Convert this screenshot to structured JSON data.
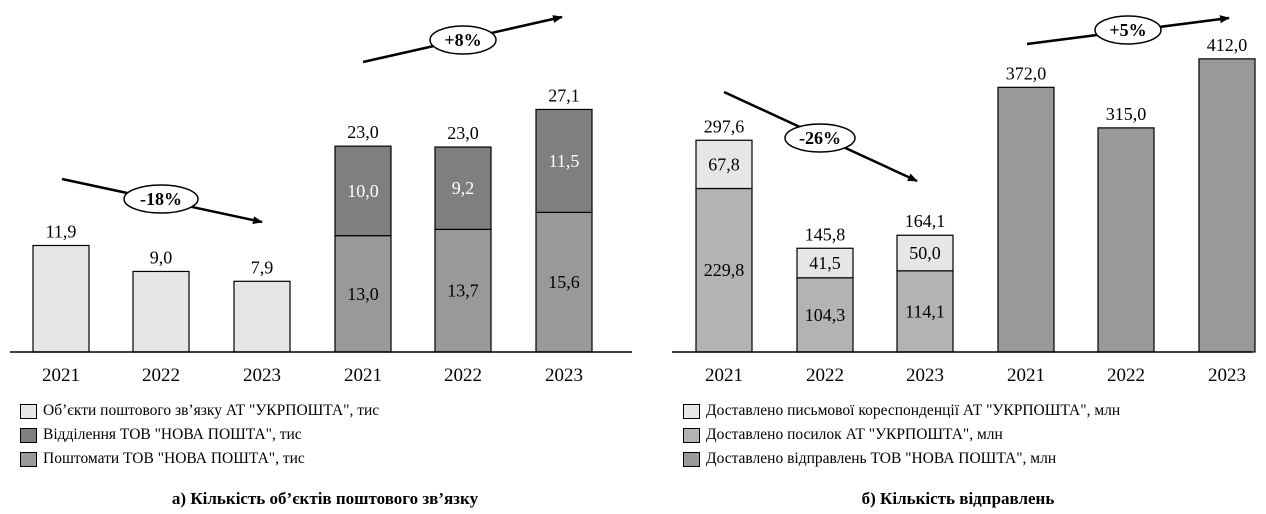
{
  "colors": {
    "light": "#e6e6e6",
    "dark": "#7f7f7f",
    "mid": "#b3b3b3",
    "medium": "#999999"
  },
  "chart_data": [
    {
      "type": "bar",
      "stacked": true,
      "caption": "а) Кількість об’єктів поштового зв’язку",
      "categories": [
        "2021",
        "2022",
        "2023",
        "2021",
        "2022",
        "2023"
      ],
      "ylim": [
        0,
        30
      ],
      "series": [
        {
          "name": "Об’єкти поштового зв’язку АТ \"УКРПОШТА\", тис",
          "color": "#e6e6e6",
          "values": [
            11.9,
            9.0,
            7.9,
            null,
            null,
            null
          ],
          "labels": [
            "",
            "",
            "",
            "",
            "",
            ""
          ]
        },
        {
          "name": "Поштомати ТОВ \"НОВА ПОШТА\", тис",
          "color": "#999999",
          "values": [
            null,
            null,
            null,
            13.0,
            13.7,
            15.6
          ],
          "labels": [
            "",
            "",
            "",
            "13,0",
            "13,7",
            "15,6"
          ]
        },
        {
          "name": "Відділення ТОВ \"НОВА ПОШТА\", тис",
          "color": "#7f7f7f",
          "values": [
            null,
            null,
            null,
            10.0,
            9.2,
            11.5
          ],
          "labels": [
            "",
            "",
            "",
            "10,0",
            "9,2",
            "11,5"
          ]
        }
      ],
      "totals": [
        "11,9",
        "9,0",
        "7,9",
        "23,0",
        "23,0",
        "27,1"
      ],
      "legend": [
        {
          "label": "Об’єкти поштового зв’язку АТ \"УКРПОШТА\", тис",
          "color": "#e6e6e6"
        },
        {
          "label": "Відділення ТОВ \"НОВА ПОШТА\", тис",
          "color": "#7f7f7f"
        },
        {
          "label": "Поштомати ТОВ \"НОВА ПОШТА\", тис",
          "color": "#999999"
        }
      ],
      "annotations": [
        "-18%",
        "+8%"
      ]
    },
    {
      "type": "bar",
      "stacked": true,
      "caption": "б) Кількість відправлень",
      "categories": [
        "2021",
        "2022",
        "2023",
        "2021",
        "2022",
        "2023"
      ],
      "ylim": [
        0,
        450
      ],
      "series": [
        {
          "name": "Доставлено посилок АТ \"УКРПОШТА\", млн",
          "color": "#b3b3b3",
          "values": [
            229.8,
            104.3,
            114.1,
            null,
            null,
            null
          ],
          "labels": [
            "229,8",
            "104,3",
            "114,1",
            "",
            "",
            ""
          ]
        },
        {
          "name": "Доставлено письмової кореспонденції АТ \"УКРПОШТА\", млн",
          "color": "#e6e6e6",
          "values": [
            67.8,
            41.5,
            50.0,
            null,
            null,
            null
          ],
          "labels": [
            "67,8",
            "41,5",
            "50,0",
            "",
            "",
            ""
          ]
        },
        {
          "name": "Доставлено відправлень ТОВ \"НОВА ПОШТА\", млн",
          "color": "#999999",
          "values": [
            null,
            null,
            null,
            372.0,
            315.0,
            412.0
          ],
          "labels": [
            "",
            "",
            "",
            "",
            "",
            ""
          ]
        }
      ],
      "totals": [
        "297,6",
        "145,8",
        "164,1",
        "372,0",
        "315,0",
        "412,0"
      ],
      "legend": [
        {
          "label": "Доставлено письмової кореспонденції АТ \"УКРПОШТА\", млн",
          "color": "#e6e6e6"
        },
        {
          "label": "Доставлено посилок АТ \"УКРПОШТА\", млн",
          "color": "#b3b3b3"
        },
        {
          "label": "Доставлено відправлень ТОВ \"НОВА ПОШТА\", млн",
          "color": "#999999"
        }
      ],
      "annotations": [
        "-26%",
        "+5%"
      ]
    }
  ]
}
